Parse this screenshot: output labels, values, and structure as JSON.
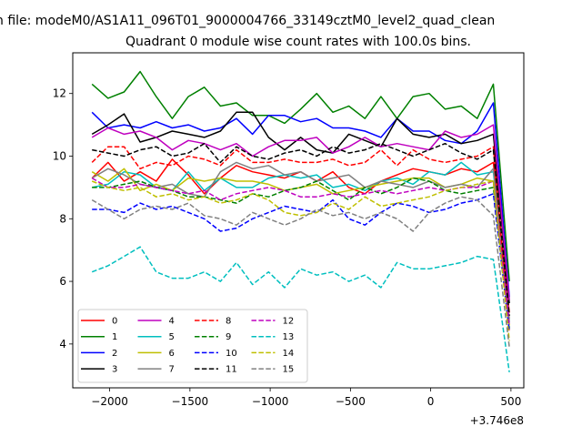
{
  "chart_data": {
    "type": "line",
    "suptitle": "n file: modeM0/AS1A11_096T01_9000004766_33149cztM0_level2_quad_clean",
    "title": "Quadrant 0 module wise count rates with 100.0s bins.",
    "xlabel": "",
    "ylabel": "",
    "x_offset_label": "+3.746e8",
    "xlim": [
      -2230,
      580
    ],
    "ylim": [
      2.6,
      13.3
    ],
    "x_ticks": [
      -2000,
      -1500,
      -1000,
      -500,
      0,
      500
    ],
    "x_tick_labels": [
      "−2000",
      "−1500",
      "−1000",
      "−500",
      "0",
      "500"
    ],
    "y_ticks": [
      4,
      6,
      8,
      10,
      12
    ],
    "y_tick_labels": [
      "4",
      "6",
      "8",
      "10",
      "12"
    ],
    "grid": false,
    "legend_position": "lower-left",
    "legend_columns": 4,
    "x": [
      -2110,
      -2010,
      -1910,
      -1810,
      -1710,
      -1610,
      -1510,
      -1410,
      -1310,
      -1210,
      -1110,
      -1010,
      -910,
      -810,
      -710,
      -610,
      -510,
      -410,
      -310,
      -210,
      -110,
      -10,
      90,
      190,
      290,
      390,
      490
    ],
    "series": [
      {
        "name": "0",
        "color": "#ff0000",
        "dash": "solid",
        "values": [
          9.3,
          9.8,
          9.2,
          9.5,
          9.2,
          9.9,
          9.4,
          8.8,
          9.3,
          9.7,
          9.5,
          9.4,
          9.3,
          9.5,
          9.2,
          9.5,
          9.0,
          8.8,
          9.2,
          9.4,
          9.6,
          9.5,
          9.4,
          9.6,
          9.5,
          9.8,
          5.0
        ]
      },
      {
        "name": "1",
        "color": "#008000",
        "dash": "solid",
        "values": [
          12.3,
          11.85,
          12.05,
          12.7,
          11.9,
          11.2,
          11.9,
          12.2,
          11.6,
          11.7,
          11.3,
          11.3,
          11.05,
          11.5,
          12.0,
          11.4,
          11.6,
          11.2,
          11.9,
          11.2,
          11.9,
          12.0,
          11.5,
          11.6,
          11.2,
          12.3,
          6.0
        ]
      },
      {
        "name": "2",
        "color": "#0000ff",
        "dash": "solid",
        "values": [
          11.4,
          10.9,
          11.0,
          10.9,
          11.1,
          10.9,
          11.0,
          10.8,
          10.9,
          11.2,
          10.7,
          11.3,
          11.3,
          11.1,
          11.2,
          10.9,
          10.9,
          10.8,
          10.6,
          11.2,
          10.8,
          10.8,
          10.5,
          10.4,
          10.8,
          11.7,
          5.5
        ]
      },
      {
        "name": "3",
        "color": "#000000",
        "dash": "solid",
        "values": [
          10.7,
          11.0,
          11.35,
          10.45,
          10.6,
          10.8,
          10.7,
          10.6,
          10.8,
          11.4,
          11.4,
          10.6,
          10.2,
          10.6,
          10.2,
          10.1,
          10.7,
          10.5,
          10.3,
          11.2,
          10.7,
          10.6,
          10.7,
          10.4,
          10.5,
          10.7,
          5.3
        ]
      },
      {
        "name": "4",
        "color": "#bf00bf",
        "dash": "solid",
        "values": [
          10.6,
          10.9,
          10.7,
          10.8,
          10.6,
          10.2,
          10.5,
          10.4,
          10.2,
          10.4,
          10.0,
          10.3,
          10.5,
          10.5,
          10.6,
          10.1,
          10.3,
          10.6,
          10.3,
          10.4,
          10.3,
          10.2,
          10.8,
          10.6,
          10.7,
          11.0,
          5.4
        ]
      },
      {
        "name": "5",
        "color": "#00bfbf",
        "dash": "solid",
        "values": [
          9.0,
          9.1,
          9.5,
          9.4,
          9.0,
          8.9,
          9.5,
          8.9,
          9.3,
          9.0,
          9.0,
          9.3,
          9.4,
          9.3,
          9.4,
          9.0,
          9.1,
          8.9,
          9.2,
          9.3,
          9.1,
          9.5,
          9.4,
          9.8,
          9.4,
          9.5,
          4.7
        ]
      },
      {
        "name": "6",
        "color": "#bfbf00",
        "dash": "solid",
        "values": [
          9.5,
          9.2,
          9.6,
          8.9,
          9.1,
          8.9,
          9.3,
          9.2,
          9.3,
          9.2,
          9.2,
          9.1,
          8.9,
          9.0,
          9.1,
          8.8,
          8.9,
          9.0,
          9.1,
          9.2,
          9.3,
          9.3,
          9.0,
          9.1,
          9.3,
          9.2,
          4.6
        ]
      },
      {
        "name": "7",
        "color": "#808080",
        "dash": "solid",
        "values": [
          9.3,
          9.6,
          9.4,
          9.1,
          9.0,
          9.1,
          8.8,
          8.7,
          9.5,
          9.8,
          9.6,
          9.7,
          9.4,
          9.5,
          9.2,
          9.3,
          9.4,
          9.0,
          9.2,
          9.1,
          9.0,
          9.2,
          9.0,
          9.1,
          9.0,
          9.6,
          4.8
        ]
      },
      {
        "name": "8",
        "color": "#ff0000",
        "dash": "dashed",
        "values": [
          9.8,
          10.3,
          10.3,
          9.6,
          9.8,
          9.7,
          10.0,
          9.9,
          9.7,
          10.2,
          9.8,
          9.8,
          9.9,
          9.8,
          9.8,
          9.9,
          9.7,
          9.8,
          10.2,
          9.7,
          10.2,
          9.9,
          9.8,
          9.9,
          10.0,
          10.3,
          4.4
        ]
      },
      {
        "name": "9",
        "color": "#008000",
        "dash": "dashed",
        "values": [
          9.0,
          9.0,
          9.1,
          9.2,
          9.0,
          8.9,
          8.7,
          8.7,
          8.6,
          8.5,
          8.8,
          8.7,
          8.9,
          9.0,
          9.2,
          8.9,
          8.6,
          9.0,
          8.8,
          9.0,
          9.3,
          9.2,
          8.9,
          8.8,
          8.9,
          9.0,
          4.5
        ]
      },
      {
        "name": "10",
        "color": "#0000ff",
        "dash": "dashed",
        "values": [
          8.3,
          8.3,
          8.2,
          8.5,
          8.3,
          8.4,
          8.2,
          8.0,
          7.6,
          7.7,
          8.0,
          8.2,
          8.4,
          8.3,
          8.2,
          8.6,
          8.0,
          7.8,
          8.2,
          8.5,
          8.4,
          8.2,
          8.3,
          8.5,
          8.6,
          8.8,
          4.4
        ]
      },
      {
        "name": "11",
        "color": "#000000",
        "dash": "dashed",
        "values": [
          10.2,
          10.1,
          10.0,
          10.2,
          10.3,
          10.0,
          10.1,
          10.4,
          9.8,
          10.3,
          10.0,
          9.9,
          10.1,
          10.2,
          10.0,
          10.3,
          10.1,
          10.2,
          10.4,
          10.2,
          10.0,
          10.2,
          10.4,
          10.1,
          9.9,
          10.2,
          4.9
        ]
      },
      {
        "name": "12",
        "color": "#bf00bf",
        "dash": "dashed",
        "values": [
          9.3,
          9.0,
          9.0,
          9.1,
          9.0,
          8.9,
          8.8,
          8.9,
          8.6,
          8.8,
          8.9,
          9.0,
          8.9,
          8.7,
          8.7,
          8.8,
          8.7,
          8.8,
          8.9,
          8.8,
          8.9,
          9.0,
          8.9,
          9.0,
          9.0,
          9.2,
          4.6
        ]
      },
      {
        "name": "13",
        "color": "#00bfbf",
        "dash": "dashed",
        "values": [
          6.3,
          6.5,
          6.8,
          7.1,
          6.3,
          6.1,
          6.1,
          6.3,
          6.0,
          6.6,
          5.9,
          6.3,
          5.8,
          6.4,
          6.2,
          6.3,
          6.0,
          6.2,
          5.8,
          6.6,
          6.4,
          6.4,
          6.5,
          6.6,
          6.8,
          6.7,
          3.1
        ]
      },
      {
        "name": "14",
        "color": "#bfbf00",
        "dash": "dashed",
        "values": [
          9.2,
          9.0,
          8.9,
          9.0,
          8.7,
          8.8,
          8.6,
          8.7,
          8.5,
          8.6,
          8.8,
          8.6,
          8.2,
          8.1,
          8.2,
          8.5,
          8.3,
          8.7,
          8.4,
          8.5,
          8.6,
          8.7,
          8.9,
          9.0,
          9.1,
          9.2,
          4.1
        ]
      },
      {
        "name": "15",
        "color": "#808080",
        "dash": "dashed",
        "values": [
          8.6,
          8.3,
          8.0,
          8.3,
          8.4,
          8.3,
          8.5,
          8.1,
          8.0,
          7.8,
          8.2,
          8.0,
          7.8,
          8.0,
          8.3,
          8.1,
          8.2,
          8.0,
          8.2,
          8.0,
          7.6,
          8.2,
          8.5,
          8.7,
          8.6,
          8.1,
          3.9
        ]
      }
    ]
  }
}
